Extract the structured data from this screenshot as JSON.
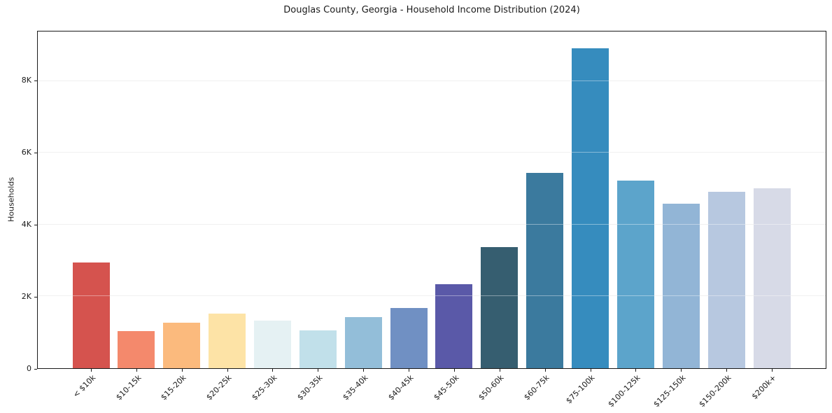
{
  "chart_data": {
    "type": "bar",
    "title": "Douglas County, Georgia - Household Income Distribution (2024)",
    "xlabel": "",
    "ylabel": "Households",
    "categories": [
      "< $10k",
      "$10-15k",
      "$15-20k",
      "$20-25k",
      "$25-30k",
      "$30-35k",
      "$35-40k",
      "$40-45k",
      "$45-50k",
      "$50-60k",
      "$60-75k",
      "$75-100k",
      "$100-125k",
      "$125-150k",
      "$150-200k",
      "$200k+"
    ],
    "values": [
      2950,
      1030,
      1260,
      1520,
      1330,
      1060,
      1420,
      1670,
      2340,
      3370,
      5440,
      8920,
      5220,
      4580,
      4910,
      5010
    ],
    "bar_colors": [
      "#d5534e",
      "#f4896c",
      "#fbba7d",
      "#fde3a6",
      "#e5f1f3",
      "#c1e0ea",
      "#93bed9",
      "#7090c3",
      "#5a59a8",
      "#365e70",
      "#3b7a9e",
      "#368cbe",
      "#5ca4cb",
      "#92b5d6",
      "#b7c8e0",
      "#d7dae7"
    ],
    "ylim": [
      0,
      9380
    ],
    "yticks": [
      {
        "value": 0,
        "label": "0"
      },
      {
        "value": 2000,
        "label": "2K"
      },
      {
        "value": 4000,
        "label": "4K"
      },
      {
        "value": 6000,
        "label": "6K"
      },
      {
        "value": 8000,
        "label": "8K"
      }
    ],
    "grid": "horizontal",
    "legend": "none",
    "colors": {
      "background": "#ffffff",
      "grid": "#e6e6e6",
      "spine": "#1a1a1a",
      "text": "#1a1a1a"
    }
  }
}
